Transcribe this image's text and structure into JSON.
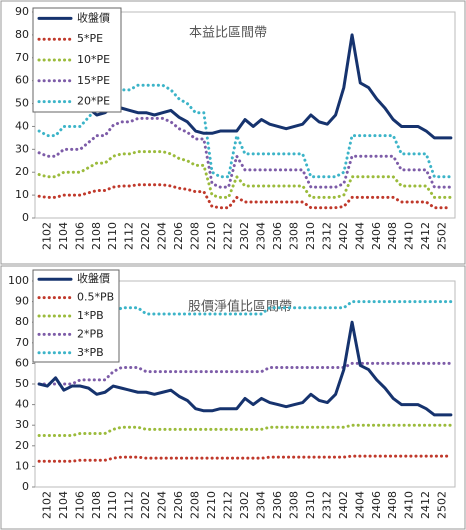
{
  "chart_data": [
    {
      "type": "line",
      "title": "本益比區間帶",
      "categories": [
        null,
        "2102",
        null,
        "2104",
        null,
        "2106",
        null,
        "2108",
        null,
        "2110",
        null,
        "2112",
        null,
        "2202",
        null,
        "2204",
        null,
        "2206",
        null,
        "2208",
        null,
        "2210",
        null,
        "2212",
        null,
        "2302",
        null,
        "2304",
        null,
        "2306",
        null,
        "2308",
        null,
        "2310",
        null,
        "2312",
        null,
        "2402",
        null,
        "2404",
        null,
        "2406",
        null,
        "2408",
        null,
        "2410",
        null,
        "2412",
        null,
        "2502",
        null
      ],
      "ylim": [
        0,
        90
      ],
      "yticks": [
        0,
        10,
        20,
        30,
        40,
        50,
        60,
        70,
        80,
        90
      ],
      "grid": false,
      "series": [
        {
          "name": "收盤價",
          "color": "#16336e",
          "values": [
            50,
            49,
            53,
            47,
            49,
            49,
            48,
            45,
            46,
            49,
            48,
            47,
            46,
            46,
            45,
            46,
            47,
            44,
            42,
            38,
            37,
            37,
            38,
            38,
            38,
            43,
            40,
            43,
            41,
            40,
            39,
            40,
            41,
            45,
            42,
            41,
            45,
            57,
            80,
            59,
            57,
            52,
            48,
            43,
            40,
            40,
            40,
            38,
            35,
            35,
            35
          ]
        },
        {
          "name": "5*PE",
          "color": "#c0392b",
          "values": [
            9.5,
            9,
            9,
            10,
            10,
            10,
            11,
            12,
            12,
            13.5,
            14,
            14,
            14.5,
            14.5,
            14.5,
            14.5,
            14,
            13,
            12.5,
            11.5,
            11.5,
            5,
            4.5,
            4.5,
            9,
            7,
            7,
            7,
            7,
            7,
            7,
            7,
            7,
            4.5,
            4.5,
            4.5,
            4.5,
            5,
            9,
            9,
            9,
            9,
            9,
            9,
            7,
            7,
            7,
            7,
            4.5,
            4.5,
            4.5
          ]
        },
        {
          "name": "10*PE",
          "color": "#9bbb3b",
          "values": [
            19,
            18,
            18,
            20,
            20,
            20,
            22,
            24,
            24,
            27,
            28,
            28,
            29,
            29,
            29,
            29,
            28,
            26,
            25,
            23,
            23,
            10,
            9,
            9,
            18,
            14,
            14,
            14,
            14,
            14,
            14,
            14,
            14,
            9,
            9,
            9,
            9,
            10,
            18,
            18,
            18,
            18,
            18,
            18,
            14,
            14,
            14,
            14,
            9,
            9,
            9
          ]
        },
        {
          "name": "15*PE",
          "color": "#7d5ca8",
          "values": [
            28.5,
            27,
            27,
            30,
            30,
            30,
            33,
            36,
            36,
            40.5,
            42,
            42,
            43.5,
            43.5,
            43.5,
            43.5,
            42,
            39,
            37.5,
            34.5,
            34.5,
            15,
            13.5,
            13.5,
            27,
            21,
            21,
            21,
            21,
            21,
            21,
            21,
            21,
            13.5,
            13.5,
            13.5,
            13.5,
            15,
            27,
            27,
            27,
            27,
            27,
            27,
            21,
            21,
            21,
            21,
            13.5,
            13.5,
            13.5
          ]
        },
        {
          "name": "20*PE",
          "color": "#3cb4c8",
          "values": [
            38,
            36,
            36,
            40,
            40,
            40,
            44,
            48,
            48,
            54,
            56,
            56,
            58,
            58,
            58,
            58,
            56,
            52,
            50,
            46,
            46,
            20,
            18,
            18,
            36,
            28,
            28,
            28,
            28,
            28,
            28,
            28,
            28,
            18,
            18,
            18,
            18,
            20,
            36,
            36,
            36,
            36,
            36,
            36,
            28,
            28,
            28,
            28,
            18,
            18,
            18
          ]
        }
      ]
    },
    {
      "type": "line",
      "title": "股價淨值比區間帶",
      "categories": [
        null,
        "2102",
        null,
        "2104",
        null,
        "2106",
        null,
        "2108",
        null,
        "2110",
        null,
        "2112",
        null,
        "2202",
        null,
        "2204",
        null,
        "2206",
        null,
        "2208",
        null,
        "2210",
        null,
        "2212",
        null,
        "2302",
        null,
        "2304",
        null,
        "2306",
        null,
        "2308",
        null,
        "2310",
        null,
        "2312",
        null,
        "2402",
        null,
        "2404",
        null,
        "2406",
        null,
        "2408",
        null,
        "2410",
        null,
        "2412",
        null,
        "2502",
        null
      ],
      "ylim": [
        0,
        100
      ],
      "yticks": [
        0,
        10,
        20,
        30,
        40,
        50,
        60,
        70,
        80,
        90,
        100
      ],
      "grid": false,
      "series": [
        {
          "name": "收盤價",
          "color": "#16336e",
          "values": [
            50,
            49,
            53,
            47,
            49,
            49,
            48,
            45,
            46,
            49,
            48,
            47,
            46,
            46,
            45,
            46,
            47,
            44,
            42,
            38,
            37,
            37,
            38,
            38,
            38,
            43,
            40,
            43,
            41,
            40,
            39,
            40,
            41,
            45,
            42,
            41,
            45,
            57,
            80,
            59,
            57,
            52,
            48,
            43,
            40,
            40,
            40,
            38,
            35,
            35,
            35
          ]
        },
        {
          "name": "0.5*PB",
          "color": "#c0392b",
          "values": [
            12.5,
            12.5,
            12.5,
            12.5,
            12.5,
            13,
            13,
            13,
            13,
            14,
            14.5,
            14.5,
            14.5,
            14,
            14,
            14,
            14,
            14,
            14,
            14,
            14,
            14,
            14,
            14,
            14,
            14,
            14,
            14,
            14.5,
            14.5,
            14.5,
            14.5,
            14.5,
            14.5,
            14.5,
            14.5,
            14.5,
            14.5,
            15,
            15,
            15,
            15,
            15,
            15,
            15,
            15,
            15,
            15,
            15,
            15,
            15
          ]
        },
        {
          "name": "1*PB",
          "color": "#9bbb3b",
          "values": [
            25,
            25,
            25,
            25,
            25,
            26,
            26,
            26,
            26,
            28,
            29,
            29,
            29,
            28,
            28,
            28,
            28,
            28,
            28,
            28,
            28,
            28,
            28,
            28,
            28,
            28,
            28,
            28,
            29,
            29,
            29,
            29,
            29,
            29,
            29,
            29,
            29,
            29,
            30,
            30,
            30,
            30,
            30,
            30,
            30,
            30,
            30,
            30,
            30,
            30,
            30
          ]
        },
        {
          "name": "2*PB",
          "color": "#7d5ca8",
          "values": [
            50,
            50,
            50,
            50,
            50,
            52,
            52,
            52,
            52,
            56,
            58,
            58,
            58,
            56,
            56,
            56,
            56,
            56,
            56,
            56,
            56,
            56,
            56,
            56,
            56,
            56,
            56,
            56,
            58,
            58,
            58,
            58,
            58,
            58,
            58,
            58,
            58,
            58,
            60,
            60,
            60,
            60,
            60,
            60,
            60,
            60,
            60,
            60,
            60,
            60,
            60
          ]
        },
        {
          "name": "3*PB",
          "color": "#3cb4c8",
          "values": [
            75,
            75,
            75,
            75,
            75,
            78,
            78,
            78,
            78,
            84,
            87,
            87,
            87,
            84,
            84,
            84,
            84,
            84,
            84,
            84,
            84,
            84,
            84,
            84,
            84,
            84,
            84,
            84,
            87,
            87,
            87,
            87,
            87,
            87,
            87,
            87,
            87,
            87,
            90,
            90,
            90,
            90,
            90,
            90,
            90,
            90,
            90,
            90,
            90,
            90,
            90
          ]
        }
      ]
    }
  ]
}
